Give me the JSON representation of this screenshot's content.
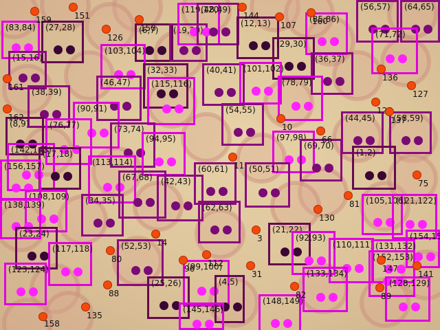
{
  "boxes": [
    {
      "label": "(83,84)",
      "c": "p"
    },
    {
      "label": "(27,28)",
      "c": "d"
    },
    {
      "label": "(15,16)",
      "c": "m"
    },
    {
      "label": "(6,7)",
      "c": "d"
    },
    {
      "label": "(19,20)",
      "c": "m"
    },
    {
      "label": "(119,120)",
      "c": "p"
    },
    {
      "label": "(48,49)",
      "c": "m"
    },
    {
      "label": "(12,13)",
      "c": "d"
    },
    {
      "label": "(85,86)",
      "c": "p"
    },
    {
      "label": "(56,57)",
      "c": "m"
    },
    {
      "label": "(64,65)",
      "c": "m"
    },
    {
      "label": "(29,30)",
      "c": "d"
    },
    {
      "label": "(71,72)",
      "c": "p"
    },
    {
      "label": "(103,104)",
      "c": "p"
    },
    {
      "label": "(32,33)",
      "c": "d"
    },
    {
      "label": "(46,47)",
      "c": "m"
    },
    {
      "label": "(115,116)",
      "c": "p"
    },
    {
      "label": "(40,41)",
      "c": "m"
    },
    {
      "label": "(101,102)",
      "c": "p"
    },
    {
      "label": "(36,37)",
      "c": "m"
    },
    {
      "label": "(38,39)",
      "c": "m"
    },
    {
      "label": "(78,79)",
      "c": "p"
    },
    {
      "label": "(90,91)",
      "c": "p"
    },
    {
      "label": "(54,55)",
      "c": "m"
    },
    {
      "label": "(8,9)",
      "c": "d"
    },
    {
      "label": "(76,77)",
      "c": "p"
    },
    {
      "label": "(44,45)",
      "c": "m"
    },
    {
      "label": "(58,59)",
      "c": "m"
    },
    {
      "label": "(73,74)",
      "c": "m"
    },
    {
      "label": "(142,143)",
      "c": "p"
    },
    {
      "label": "(97,98)",
      "c": "p"
    },
    {
      "label": "(17,18)",
      "c": "d"
    },
    {
      "label": "(94,95)",
      "c": "p"
    },
    {
      "label": "(69,70)",
      "c": "m"
    },
    {
      "label": "(1,2)",
      "c": "d"
    },
    {
      "label": "(156,157)",
      "c": "p"
    },
    {
      "label": "(113,114)",
      "c": "p"
    },
    {
      "label": "(60,61)",
      "c": "m"
    },
    {
      "label": "(50,51)",
      "c": "m"
    },
    {
      "label": "(67,68)",
      "c": "m"
    },
    {
      "label": "(42,43)",
      "c": "m"
    },
    {
      "label": "(108,109)",
      "c": "p"
    },
    {
      "label": "(138,139)",
      "c": "p"
    },
    {
      "label": "(34,35)",
      "c": "m"
    },
    {
      "label": "(105,106)",
      "c": "p"
    },
    {
      "label": "(121,122)",
      "c": "p"
    },
    {
      "label": "(62,63)",
      "c": "m"
    },
    {
      "label": "(23,24)",
      "c": "d"
    },
    {
      "label": "(21,22)",
      "c": "d"
    },
    {
      "label": "(154,155)",
      "c": "p"
    },
    {
      "label": "(117,118)",
      "c": "p"
    },
    {
      "label": "(52,53)",
      "c": "m"
    },
    {
      "label": "(92,93)",
      "c": "p"
    },
    {
      "label": "(110,111)",
      "c": "p"
    },
    {
      "label": "(131,132)",
      "c": "p"
    },
    {
      "label": "(152,153)",
      "c": "p"
    },
    {
      "label": "(123,124)",
      "c": "p"
    },
    {
      "label": "(99,100)",
      "c": "p"
    },
    {
      "label": "(25,26)",
      "c": "d"
    },
    {
      "label": "(4,5)",
      "c": "d"
    },
    {
      "label": "(133,134)",
      "c": "p"
    },
    {
      "label": "(128,129)",
      "c": "p"
    },
    {
      "label": "(145,146)",
      "c": "p"
    },
    {
      "label": "(148,149)",
      "c": "p"
    }
  ],
  "numbers": [
    "159",
    "151",
    "150",
    "144",
    "160",
    "126",
    "107",
    "136",
    "161",
    "127",
    "125",
    "137",
    "162",
    "10",
    "66",
    "11",
    "75",
    "81",
    "130",
    "14",
    "3",
    "80",
    "88",
    "135",
    "158",
    "112",
    "96",
    "31",
    "89",
    "82",
    "147",
    "141"
  ]
}
